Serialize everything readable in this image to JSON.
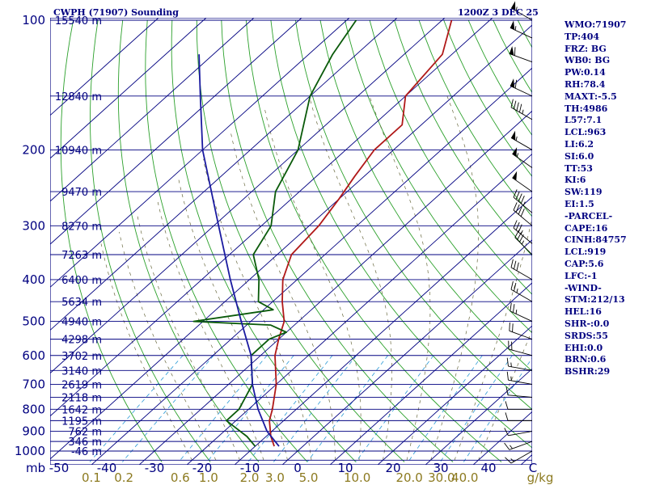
{
  "header": {
    "title": "CWPH (71907) Sounding",
    "time": "1200Z  3 DEC 25"
  },
  "indices": [
    "WMO:71907",
    "TP:404",
    "FRZ: BG",
    "WB0: BG",
    "PW:0.14",
    "RH:78.4",
    "MAXT:-5.5",
    "TH:4986",
    "L57:7.1",
    "LCL:963",
    "LI:6.2",
    "SI:6.0",
    "TT:53",
    "KI:6",
    "SW:119",
    "EI:1.5",
    "-PARCEL-",
    "CAPE:16",
    "CINH:84757",
    "LCL:919",
    "CAP:5.6",
    "LFC:-1",
    "-WIND-",
    "STM:212/13",
    "HEL:16",
    "SHR-:0.0",
    "SRDS:55",
    "EHI:0.0",
    "BRN:0.6",
    "BSHR:29"
  ],
  "colors": {
    "isobar": "#000080",
    "isotherm": "#000080",
    "dry_adiabat": "#2ba02b",
    "moist_adiabat": "#6a6a40",
    "mixing_ratio": "#2a9ad6",
    "temperature": "#b01818",
    "dewpoint": "#0a5a0a",
    "parcel": "#1a1aa0",
    "wind": "#000000",
    "label": "#000080",
    "mix_label": "#8c7a20"
  },
  "chart_data": {
    "type": "line",
    "title": "CWPH (71907) Sounding",
    "subtitle": "1200Z  3 DEC 25",
    "xlabel": "C",
    "ylabel": "mb",
    "pressure_levels": [
      100,
      200,
      300,
      400,
      500,
      600,
      700,
      800,
      900,
      1000
    ],
    "pressure_tick_labels": [
      "100",
      "200",
      "300",
      "400",
      "500",
      "600",
      "700",
      "800",
      "900",
      "1000"
    ],
    "pressure_range": [
      100,
      1050
    ],
    "temperature_ticks": [
      -50,
      -40,
      -30,
      -20,
      -10,
      0,
      10,
      20,
      30,
      40
    ],
    "temperature_tick_labels": [
      "-50",
      "-40",
      "-30",
      "-20",
      "-10",
      "0",
      "10",
      "20",
      "30",
      "40"
    ],
    "temperature_range": [
      -50,
      50
    ],
    "mixing_ratio_labels": [
      "0.1",
      "0.2",
      "0.6",
      "1.0",
      "2.0",
      "3.0",
      "5.0",
      "10.0",
      "20.0",
      "30.0",
      "40.0"
    ],
    "mixing_ratio_values": [
      0.1,
      0.2,
      0.6,
      1.0,
      2.0,
      3.0,
      5.0,
      10.0,
      20.0,
      30.0,
      40.0
    ],
    "mixing_ratio_unit": "g/kg",
    "heights": [
      {
        "label": "15540 m",
        "p": 100
      },
      {
        "label": "12840 m",
        "p": 150
      },
      {
        "label": "10940 m",
        "p": 200
      },
      {
        "label": "9470 m",
        "p": 250
      },
      {
        "label": "8270 m",
        "p": 300
      },
      {
        "label": "7263 m",
        "p": 350
      },
      {
        "label": "6400 m",
        "p": 400
      },
      {
        "label": "5634 m",
        "p": 450
      },
      {
        "label": "4940 m",
        "p": 500
      },
      {
        "label": "4298 m",
        "p": 550
      },
      {
        "label": "3702 m",
        "p": 600
      },
      {
        "label": "3140 m",
        "p": 650
      },
      {
        "label": "2619 m",
        "p": 700
      },
      {
        "label": "2118 m",
        "p": 750
      },
      {
        "label": "1642 m",
        "p": 800
      },
      {
        "label": "1195 m",
        "p": 850
      },
      {
        "label": "762 m",
        "p": 900
      },
      {
        "label": "346 m",
        "p": 950
      },
      {
        "label": "-46 m",
        "p": 1000
      }
    ],
    "series": [
      {
        "name": "Temperature",
        "unit": "C",
        "points": [
          {
            "p": 975,
            "t": -6
          },
          {
            "p": 925,
            "t": -9
          },
          {
            "p": 850,
            "t": -13
          },
          {
            "p": 800,
            "t": -15
          },
          {
            "p": 700,
            "t": -20
          },
          {
            "p": 600,
            "t": -27
          },
          {
            "p": 550,
            "t": -30
          },
          {
            "p": 500,
            "t": -33
          },
          {
            "p": 450,
            "t": -38
          },
          {
            "p": 400,
            "t": -43
          },
          {
            "p": 350,
            "t": -47
          },
          {
            "p": 300,
            "t": -48
          },
          {
            "p": 260,
            "t": -50
          },
          {
            "p": 230,
            "t": -52
          },
          {
            "p": 200,
            "t": -54
          },
          {
            "p": 175,
            "t": -54
          },
          {
            "p": 150,
            "t": -60
          },
          {
            "p": 120,
            "t": -62
          },
          {
            "p": 100,
            "t": -68
          }
        ]
      },
      {
        "name": "Dewpoint",
        "unit": "C",
        "points": [
          {
            "p": 975,
            "t": -10
          },
          {
            "p": 925,
            "t": -14
          },
          {
            "p": 850,
            "t": -22
          },
          {
            "p": 800,
            "t": -22
          },
          {
            "p": 700,
            "t": -25
          },
          {
            "p": 600,
            "t": -32
          },
          {
            "p": 550,
            "t": -32
          },
          {
            "p": 530,
            "t": -30
          },
          {
            "p": 510,
            "t": -35
          },
          {
            "p": 500,
            "t": -52
          },
          {
            "p": 470,
            "t": -38
          },
          {
            "p": 450,
            "t": -43
          },
          {
            "p": 400,
            "t": -48
          },
          {
            "p": 350,
            "t": -55
          },
          {
            "p": 300,
            "t": -58
          },
          {
            "p": 250,
            "t": -65
          },
          {
            "p": 200,
            "t": -70
          },
          {
            "p": 150,
            "t": -80
          },
          {
            "p": 120,
            "t": -85
          },
          {
            "p": 100,
            "t": -88
          }
        ]
      },
      {
        "name": "Parcel",
        "unit": "C",
        "points": [
          {
            "p": 975,
            "t": -5
          },
          {
            "p": 900,
            "t": -11
          },
          {
            "p": 800,
            "t": -18
          },
          {
            "p": 700,
            "t": -25
          },
          {
            "p": 600,
            "t": -32
          },
          {
            "p": 500,
            "t": -42
          },
          {
            "p": 400,
            "t": -54
          },
          {
            "p": 300,
            "t": -69
          },
          {
            "p": 200,
            "t": -90
          },
          {
            "p": 150,
            "t": -103
          },
          {
            "p": 120,
            "t": -113
          }
        ]
      }
    ],
    "wind_levels": [
      {
        "p": 100,
        "dir": 300,
        "spd": 55
      },
      {
        "p": 110,
        "dir": 295,
        "spd": 55
      },
      {
        "p": 125,
        "dir": 290,
        "spd": 60
      },
      {
        "p": 150,
        "dir": 295,
        "spd": 60
      },
      {
        "p": 170,
        "dir": 300,
        "spd": 45
      },
      {
        "p": 200,
        "dir": 300,
        "spd": 55
      },
      {
        "p": 220,
        "dir": 305,
        "spd": 55
      },
      {
        "p": 250,
        "dir": 305,
        "spd": 50
      },
      {
        "p": 280,
        "dir": 310,
        "spd": 45
      },
      {
        "p": 300,
        "dir": 310,
        "spd": 40
      },
      {
        "p": 330,
        "dir": 310,
        "spd": 35
      },
      {
        "p": 350,
        "dir": 315,
        "spd": 35
      },
      {
        "p": 400,
        "dir": 300,
        "spd": 30
      },
      {
        "p": 450,
        "dir": 300,
        "spd": 25
      },
      {
        "p": 500,
        "dir": 295,
        "spd": 25
      },
      {
        "p": 550,
        "dir": 290,
        "spd": 20
      },
      {
        "p": 600,
        "dir": 285,
        "spd": 20
      },
      {
        "p": 650,
        "dir": 280,
        "spd": 15
      },
      {
        "p": 700,
        "dir": 280,
        "spd": 15
      },
      {
        "p": 750,
        "dir": 275,
        "spd": 10
      },
      {
        "p": 800,
        "dir": 270,
        "spd": 10
      },
      {
        "p": 850,
        "dir": 270,
        "spd": 10
      },
      {
        "p": 900,
        "dir": 260,
        "spd": 10
      },
      {
        "p": 950,
        "dir": 250,
        "spd": 15
      },
      {
        "p": 1000,
        "dir": 240,
        "spd": 15
      }
    ]
  }
}
